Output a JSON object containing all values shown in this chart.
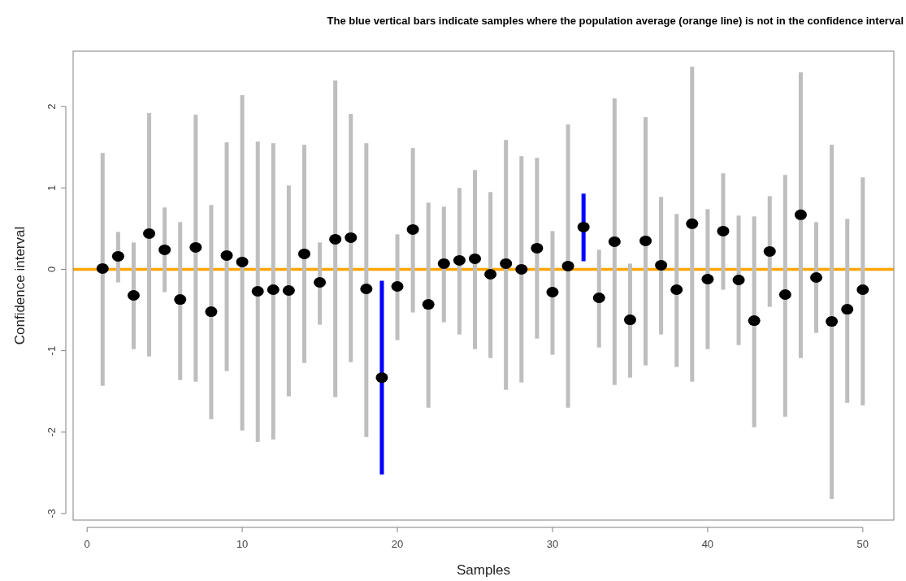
{
  "chart_data": {
    "type": "scatter",
    "title": "The blue vertical bars indicate samples where the population average (orange line) is not in the confidence interval",
    "xlabel": "Samples",
    "ylabel": "Confidence interval",
    "xlim": [
      -0.9,
      52
    ],
    "ylim": [
      -3.08,
      2.68
    ],
    "xticks": [
      0,
      10,
      20,
      30,
      40,
      50
    ],
    "yticks": [
      -3,
      -2,
      -1,
      0,
      1,
      2
    ],
    "grid": false,
    "marker": "circle",
    "ref_lines": [
      {
        "axis": "y",
        "value": 0,
        "color": "#ffa500"
      }
    ],
    "series": [
      {
        "type": "bar",
        "color": "#bebebe",
        "x": [
          1,
          2,
          3,
          4,
          5,
          6,
          7,
          8,
          9,
          10,
          11,
          12,
          13,
          14,
          15,
          16,
          17,
          18,
          20,
          21,
          22,
          23,
          24,
          25,
          26,
          27,
          28,
          29,
          30,
          31,
          33,
          34,
          35,
          36,
          37,
          38,
          39,
          40,
          41,
          42,
          43,
          44,
          45,
          46,
          47,
          48,
          49,
          50
        ],
        "base": [
          -1.43,
          -0.16,
          -0.98,
          -1.07,
          -0.28,
          -1.36,
          -1.38,
          -1.84,
          -1.25,
          -1.98,
          -2.12,
          -2.09,
          -1.56,
          -1.15,
          -0.68,
          -1.57,
          -1.14,
          -2.06,
          -0.87,
          -0.53,
          -1.7,
          -0.65,
          -0.8,
          -0.98,
          -1.09,
          -1.48,
          -1.39,
          -0.85,
          -1.05,
          -1.7,
          -0.96,
          -1.42,
          -1.33,
          -1.18,
          -0.8,
          -1.2,
          -1.38,
          -0.98,
          -0.25,
          -0.93,
          -1.94,
          -0.46,
          -1.81,
          -1.09,
          -0.78,
          -2.82,
          -1.64,
          -1.67
        ],
        "values": [
          2.86,
          0.62,
          1.31,
          2.99,
          1.04,
          1.94,
          3.28,
          2.63,
          2.81,
          4.12,
          3.69,
          3.64,
          2.59,
          2.68,
          1.01,
          3.89,
          3.05,
          3.61,
          1.3,
          2.02,
          2.52,
          1.42,
          1.8,
          2.2,
          2.04,
          3.07,
          2.78,
          2.22,
          1.52,
          3.48,
          1.2,
          3.52,
          1.4,
          3.05,
          1.69,
          1.88,
          3.87,
          1.72,
          1.43,
          1.59,
          2.59,
          1.36,
          2.97,
          3.51,
          1.36,
          4.35,
          2.26,
          2.8
        ]
      },
      {
        "type": "bar",
        "color": "#0000ff",
        "x": [
          19,
          32
        ],
        "base": [
          -2.52,
          0.1
        ],
        "values": [
          2.38,
          0.83
        ]
      },
      {
        "color": "#000000",
        "x": [
          1,
          2,
          3,
          4,
          5,
          6,
          7,
          8,
          9,
          10,
          11,
          12,
          13,
          14,
          15,
          16,
          17,
          18,
          19,
          20,
          21,
          22,
          23,
          24,
          25,
          26,
          27,
          28,
          29,
          30,
          31,
          32,
          33,
          34,
          35,
          36,
          37,
          38,
          39,
          40,
          41,
          42,
          43,
          44,
          45,
          46,
          47,
          48,
          49,
          50
        ],
        "values": [
          0.01,
          0.16,
          -0.32,
          0.44,
          0.24,
          -0.37,
          0.27,
          -0.52,
          0.17,
          0.09,
          -0.27,
          -0.25,
          -0.26,
          0.19,
          -0.16,
          0.37,
          0.39,
          -0.24,
          -1.33,
          -0.21,
          0.49,
          -0.43,
          0.07,
          0.11,
          0.13,
          -0.06,
          0.07,
          0.0,
          0.26,
          -0.28,
          0.04,
          0.52,
          -0.35,
          0.34,
          -0.62,
          0.35,
          0.05,
          -0.25,
          0.56,
          -0.12,
          0.47,
          -0.13,
          -0.63,
          0.22,
          -0.31,
          0.67,
          -0.1,
          -0.64,
          -0.49,
          -0.25
        ]
      }
    ]
  }
}
